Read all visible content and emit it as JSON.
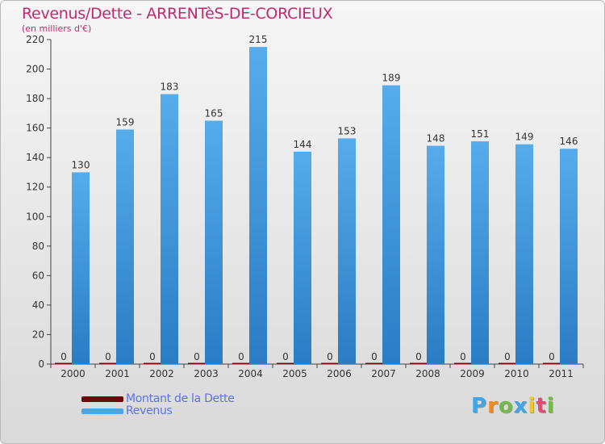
{
  "title": "Revenus/Dette - ARRENTèS-DE-CORCIEUX",
  "subtitle": "(en milliers d'€)",
  "colors": {
    "debt": "#6b0a0a",
    "revenue": "#4ea3e3",
    "revenue_dark": "#2a7cc4",
    "title": "#c2286e",
    "legend_text": "#5f72e0"
  },
  "chart_data": {
    "type": "bar",
    "categories": [
      "2000",
      "2001",
      "2002",
      "2003",
      "2004",
      "2005",
      "2006",
      "2007",
      "2008",
      "2009",
      "2010",
      "2011"
    ],
    "series": [
      {
        "name": "Montant de la Dette",
        "values": [
          0,
          0,
          0,
          0,
          0,
          0,
          0,
          0,
          0,
          0,
          0,
          0
        ]
      },
      {
        "name": "Revenus",
        "values": [
          130,
          159,
          183,
          165,
          215,
          144,
          153,
          189,
          148,
          151,
          149,
          146
        ]
      }
    ],
    "yticks": [
      0,
      20,
      40,
      60,
      80,
      100,
      120,
      140,
      160,
      180,
      200,
      220
    ],
    "ylim": [
      0,
      220
    ],
    "grid": false,
    "legend_position": "bottom-left"
  },
  "legend": [
    {
      "label": "Montant de la Dette",
      "color": "#6b0a0a"
    },
    {
      "label": "Revenus",
      "color": "#4ea3e3"
    }
  ],
  "logo": {
    "letters": [
      "P",
      "r",
      "o",
      "x",
      "i",
      "t",
      "i"
    ],
    "colors": [
      "#3fa5e6",
      "#f08a1c",
      "#74b94a",
      "#3fa5e6",
      "#f0c81c",
      "#e6486e",
      "#74b94a"
    ]
  }
}
